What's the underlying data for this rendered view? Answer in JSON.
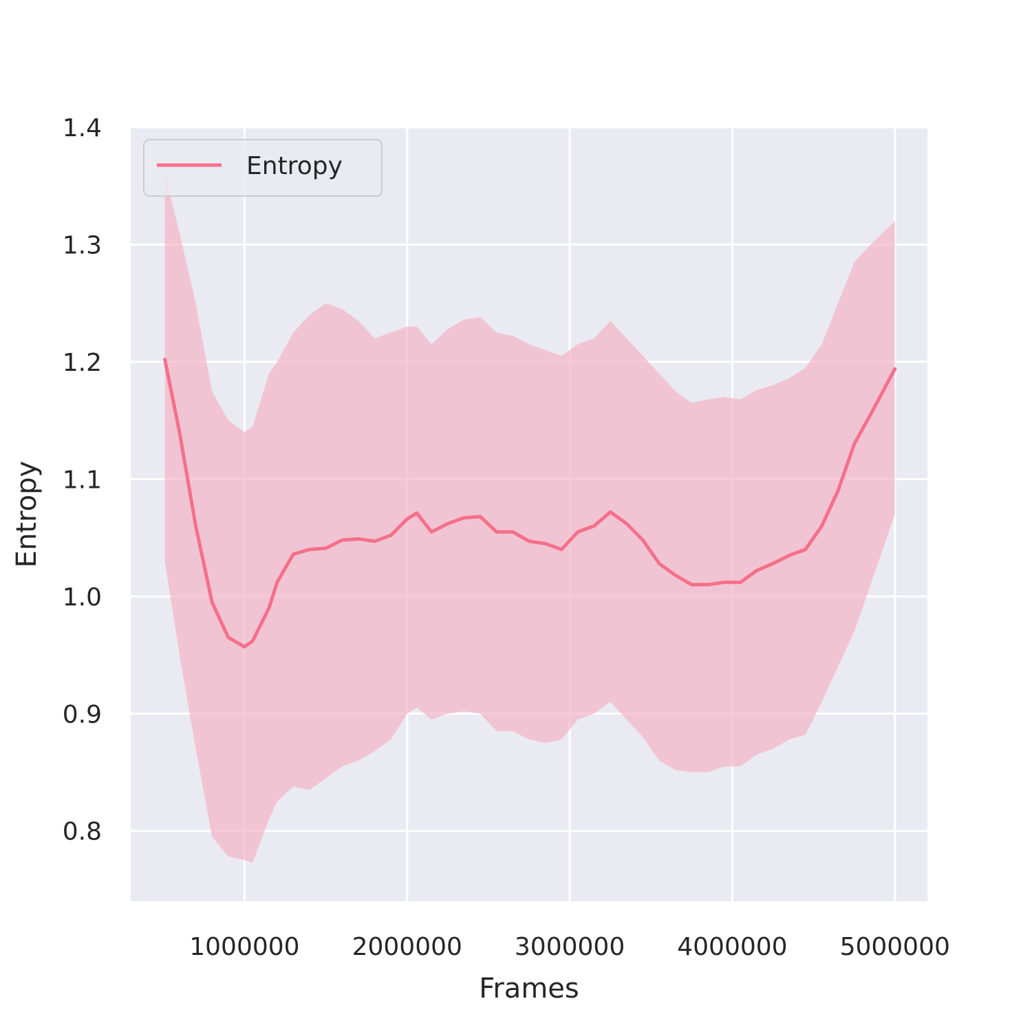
{
  "chart_data": {
    "type": "line",
    "title": "",
    "xlabel": "Frames",
    "ylabel": "Entropy",
    "xlim": [
      300000,
      5200000
    ],
    "ylim": [
      0.74,
      1.4
    ],
    "xticks": [
      1000000,
      2000000,
      3000000,
      4000000,
      5000000
    ],
    "xtick_labels": [
      "1000000",
      "2000000",
      "3000000",
      "4000000",
      "5000000"
    ],
    "yticks": [
      0.8,
      0.9,
      1.0,
      1.1,
      1.2,
      1.3,
      1.4
    ],
    "ytick_labels": [
      "0.8",
      "0.9",
      "1.0",
      "1.1",
      "1.2",
      "1.3",
      "1.4"
    ],
    "grid": true,
    "legend": {
      "position": "upper-left",
      "entries": [
        "Entropy"
      ]
    },
    "colors": {
      "line": "#f5708a",
      "band": "#f4b4c6",
      "background": "#eaeaf2",
      "grid": "#ffffff"
    },
    "series": [
      {
        "name": "Entropy",
        "x": [
          510000,
          600000,
          700000,
          800000,
          900000,
          1000000,
          1050000,
          1150000,
          1200000,
          1300000,
          1400000,
          1500000,
          1600000,
          1700000,
          1800000,
          1900000,
          2000000,
          2060000,
          2150000,
          2250000,
          2350000,
          2450000,
          2550000,
          2650000,
          2750000,
          2850000,
          2950000,
          3050000,
          3150000,
          3250000,
          3350000,
          3450000,
          3550000,
          3650000,
          3750000,
          3850000,
          3950000,
          4050000,
          4150000,
          4250000,
          4350000,
          4450000,
          4550000,
          4650000,
          4750000,
          4850000,
          5000000
        ],
        "y": [
          1.202,
          1.14,
          1.06,
          0.995,
          0.965,
          0.957,
          0.962,
          0.99,
          1.012,
          1.036,
          1.04,
          1.041,
          1.048,
          1.049,
          1.047,
          1.052,
          1.066,
          1.071,
          1.055,
          1.062,
          1.067,
          1.068,
          1.055,
          1.055,
          1.047,
          1.045,
          1.04,
          1.055,
          1.06,
          1.072,
          1.062,
          1.048,
          1.028,
          1.018,
          1.01,
          1.01,
          1.012,
          1.012,
          1.022,
          1.028,
          1.035,
          1.04,
          1.06,
          1.09,
          1.13,
          1.155,
          1.194
        ],
        "lower": [
          1.03,
          0.95,
          0.87,
          0.795,
          0.778,
          0.775,
          0.773,
          0.81,
          0.825,
          0.838,
          0.835,
          0.845,
          0.855,
          0.86,
          0.868,
          0.878,
          0.9,
          0.905,
          0.895,
          0.9,
          0.902,
          0.9,
          0.885,
          0.885,
          0.878,
          0.875,
          0.878,
          0.895,
          0.9,
          0.91,
          0.895,
          0.88,
          0.86,
          0.852,
          0.85,
          0.85,
          0.855,
          0.855,
          0.865,
          0.87,
          0.878,
          0.882,
          0.91,
          0.94,
          0.97,
          1.01,
          1.07
        ],
        "upper": [
          1.36,
          1.31,
          1.25,
          1.175,
          1.15,
          1.14,
          1.145,
          1.19,
          1.2,
          1.225,
          1.24,
          1.25,
          1.245,
          1.235,
          1.22,
          1.225,
          1.23,
          1.23,
          1.215,
          1.228,
          1.236,
          1.238,
          1.225,
          1.222,
          1.215,
          1.21,
          1.205,
          1.215,
          1.22,
          1.235,
          1.22,
          1.205,
          1.19,
          1.175,
          1.165,
          1.168,
          1.17,
          1.168,
          1.176,
          1.18,
          1.186,
          1.195,
          1.215,
          1.25,
          1.285,
          1.3,
          1.32
        ]
      }
    ]
  }
}
